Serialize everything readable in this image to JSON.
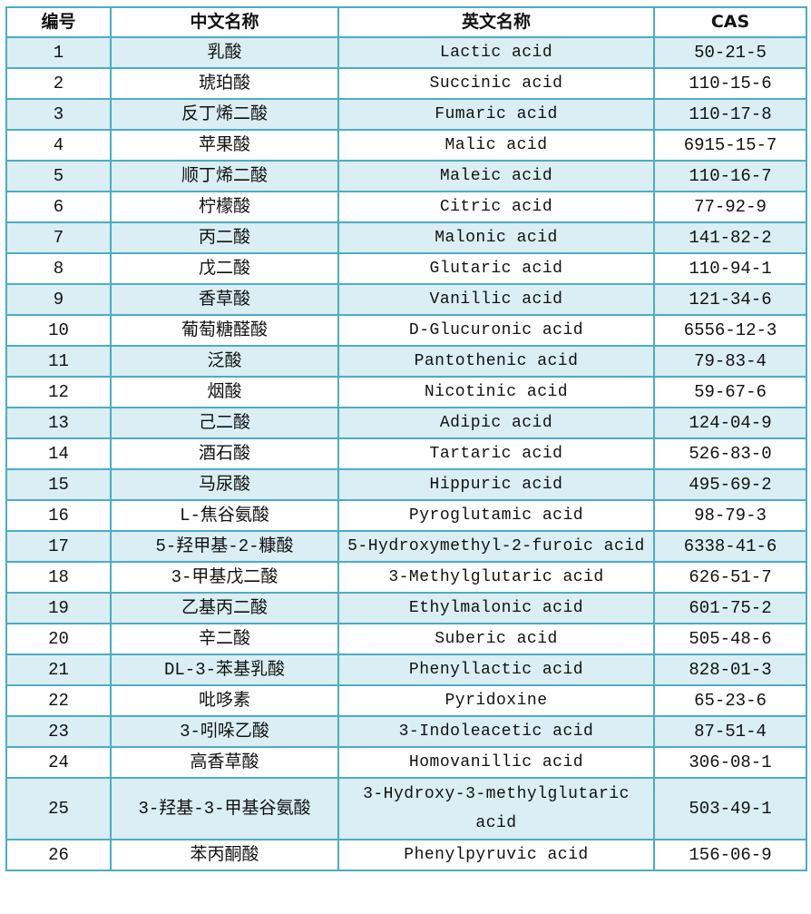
{
  "colors": {
    "border": "#4bacc6",
    "stripe": "#daeef3"
  },
  "headers": [
    "编号",
    "中文名称",
    "英文名称",
    "CAS"
  ],
  "rows": [
    [
      "1",
      "乳酸",
      "Lactic acid",
      "50-21-5"
    ],
    [
      "2",
      "琥珀酸",
      "Succinic acid",
      "110-15-6"
    ],
    [
      "3",
      "反丁烯二酸",
      "Fumaric acid",
      "110-17-8"
    ],
    [
      "4",
      "苹果酸",
      "Malic acid",
      "6915-15-7"
    ],
    [
      "5",
      "顺丁烯二酸",
      "Maleic acid",
      "110-16-7"
    ],
    [
      "6",
      "柠檬酸",
      "Citric acid",
      "77-92-9"
    ],
    [
      "7",
      "丙二酸",
      "Malonic acid",
      "141-82-2"
    ],
    [
      "8",
      "戊二酸",
      "Glutaric acid",
      "110-94-1"
    ],
    [
      "9",
      "香草酸",
      "Vanillic acid",
      "121-34-6"
    ],
    [
      "10",
      "葡萄糖醛酸",
      "D-Glucuronic acid",
      "6556-12-3"
    ],
    [
      "11",
      "泛酸",
      "Pantothenic acid",
      "79-83-4"
    ],
    [
      "12",
      "烟酸",
      "Nicotinic acid",
      "59-67-6"
    ],
    [
      "13",
      "己二酸",
      "Adipic acid",
      "124-04-9"
    ],
    [
      "14",
      "酒石酸",
      "Tartaric acid",
      "526-83-0"
    ],
    [
      "15",
      "马尿酸",
      "Hippuric acid",
      "495-69-2"
    ],
    [
      "16",
      "L-焦谷氨酸",
      "Pyroglutamic acid",
      "98-79-3"
    ],
    [
      "17",
      "5-羟甲基-2-糠酸",
      "5-Hydroxymethyl-2-furoic acid",
      "6338-41-6"
    ],
    [
      "18",
      "3-甲基戊二酸",
      "3-Methylglutaric acid",
      "626-51-7"
    ],
    [
      "19",
      "乙基丙二酸",
      "Ethylmalonic acid",
      "601-75-2"
    ],
    [
      "20",
      "辛二酸",
      "Suberic acid",
      "505-48-6"
    ],
    [
      "21",
      "DL-3-苯基乳酸",
      "Phenyllactic acid",
      "828-01-3"
    ],
    [
      "22",
      "吡哆素",
      "Pyridoxine",
      "65-23-6"
    ],
    [
      "23",
      "3-吲哚乙酸",
      "3-Indoleacetic acid",
      "87-51-4"
    ],
    [
      "24",
      "高香草酸",
      "Homovanillic acid",
      "306-08-1"
    ],
    [
      "25",
      "3-羟基-3-甲基谷氨酸",
      "3-Hydroxy-3-methylglutaric acid",
      "503-49-1"
    ],
    [
      "26",
      "苯丙酮酸",
      "Phenylpyruvic acid",
      "156-06-9"
    ]
  ]
}
